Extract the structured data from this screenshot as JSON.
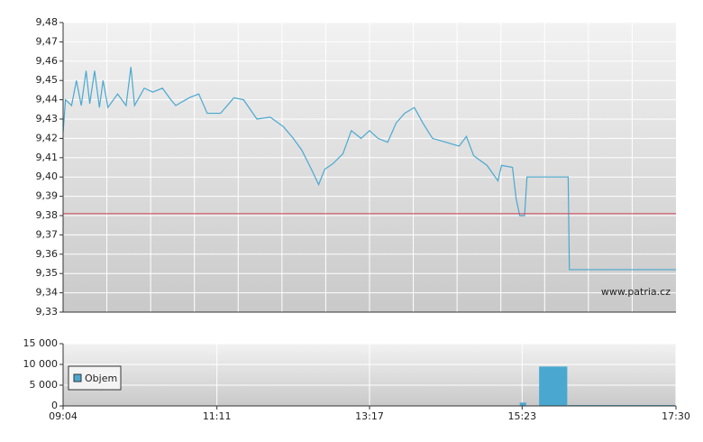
{
  "chart_data": [
    {
      "type": "line",
      "x": [
        "09:04",
        "09:06",
        "09:11",
        "09:15",
        "09:19",
        "09:23",
        "09:26",
        "09:30",
        "09:34",
        "09:37",
        "09:41",
        "09:49",
        "09:56",
        "10:00",
        "10:03",
        "10:11",
        "10:18",
        "10:26",
        "10:33",
        "10:37",
        "10:48",
        "10:56",
        "11:03",
        "11:14",
        "11:25",
        "11:33",
        "11:44",
        "11:55",
        "12:06",
        "12:14",
        "12:21",
        "12:29",
        "12:35",
        "12:40",
        "12:47",
        "12:55",
        "13:02",
        "13:10",
        "13:17",
        "13:24",
        "13:32",
        "13:39",
        "13:46",
        "13:54",
        "14:01",
        "14:09",
        "14:20",
        "14:31",
        "14:37",
        "14:43",
        "14:54",
        "15:03",
        "15:06",
        "15:15",
        "15:18",
        "15:21",
        "15:25",
        "15:27",
        "16:01",
        "16:02",
        "17:30"
      ],
      "values": [
        9.423,
        9.44,
        9.437,
        9.45,
        9.437,
        9.455,
        9.438,
        9.455,
        9.436,
        9.45,
        9.436,
        9.443,
        9.437,
        9.457,
        9.437,
        9.446,
        9.444,
        9.446,
        9.44,
        9.437,
        9.441,
        9.443,
        9.433,
        9.433,
        9.441,
        9.44,
        9.43,
        9.431,
        9.426,
        9.42,
        9.414,
        9.404,
        9.396,
        9.404,
        9.407,
        9.412,
        9.424,
        9.42,
        9.424,
        9.42,
        9.418,
        9.428,
        9.433,
        9.436,
        9.428,
        9.42,
        9.418,
        9.416,
        9.421,
        9.411,
        9.406,
        9.398,
        9.406,
        9.405,
        9.389,
        9.38,
        9.38,
        9.4,
        9.4,
        9.352,
        9.352
      ],
      "color": "#4aa8d0",
      "reference_line": 9.381,
      "reference_color": "#d04050",
      "xlim": [
        "09:04",
        "17:30"
      ],
      "ylim": [
        9.33,
        9.48
      ],
      "yticks": [
        {
          "value": 9.33,
          "label": "9,33"
        },
        {
          "value": 9.34,
          "label": "9,34"
        },
        {
          "value": 9.35,
          "label": "9,35"
        },
        {
          "value": 9.36,
          "label": "9,36"
        },
        {
          "value": 9.37,
          "label": "9,37"
        },
        {
          "value": 9.38,
          "label": "9,38"
        },
        {
          "value": 9.39,
          "label": "9,39"
        },
        {
          "value": 9.4,
          "label": "9,40"
        },
        {
          "value": 9.41,
          "label": "9,41"
        },
        {
          "value": 9.42,
          "label": "9,42"
        },
        {
          "value": 9.43,
          "label": "9,43"
        },
        {
          "value": 9.44,
          "label": "9,44"
        },
        {
          "value": 9.45,
          "label": "9,45"
        },
        {
          "value": 9.46,
          "label": "9,46"
        },
        {
          "value": 9.47,
          "label": "9,47"
        },
        {
          "value": 9.48,
          "label": "9,48"
        }
      ],
      "annotation": "www.patria.cz",
      "grid": true
    },
    {
      "type": "bar",
      "x": [
        "15:21",
        "15:27",
        "15:37",
        "16:01"
      ],
      "series": [
        {
          "name": "Objem",
          "color": "#4aa8d0",
          "values": [
            800,
            0,
            9500,
            200
          ]
        }
      ],
      "xlim": [
        "09:04",
        "17:30"
      ],
      "xticks": [
        "09:04",
        "11:11",
        "13:17",
        "15:23",
        "17:30"
      ],
      "ylim": [
        0,
        15000
      ],
      "yticks": [
        0,
        {
          "value": 5000,
          "label": "5 000"
        },
        {
          "value": 10000,
          "label": "10 000"
        },
        {
          "value": 15000,
          "label": "15 000"
        }
      ],
      "legend": "upper left",
      "grid": true
    }
  ]
}
